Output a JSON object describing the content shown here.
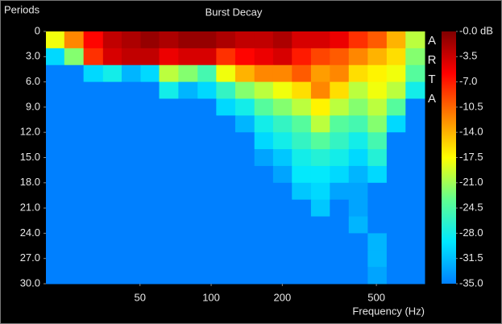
{
  "chart_data": {
    "type": "heatmap",
    "title": "Burst Decay",
    "y_label": "Periods",
    "x_label": "Frequency (Hz)",
    "watermark": "ARTA",
    "x_scale": "log",
    "xlim": [
      20,
      800
    ],
    "xticks": [
      50,
      100,
      200,
      500
    ],
    "ylim": [
      0,
      30
    ],
    "yticks": [
      0,
      {
        "value": 3,
        "label": "3.0"
      },
      {
        "value": 6,
        "label": "6.0"
      },
      {
        "value": 9,
        "label": "9.0"
      },
      {
        "value": 12,
        "label": "12.0"
      },
      {
        "value": 15,
        "label": "15.0"
      },
      {
        "value": 18,
        "label": "18.0"
      },
      {
        "value": 21,
        "label": "21.0"
      },
      {
        "value": 24,
        "label": "24.0"
      },
      {
        "value": 27,
        "label": "27.0"
      },
      {
        "value": 30,
        "label": "30.0"
      }
    ],
    "zlim": [
      -35,
      0
    ],
    "zticks": [
      {
        "value": 0,
        "label": "-0.0 dB"
      },
      -3.5,
      {
        "value": -7,
        "label": "-7.0"
      },
      -10.5,
      {
        "value": -14,
        "label": "-14.0"
      },
      -17.5,
      {
        "value": -21,
        "label": "-21.0"
      },
      -24.5,
      {
        "value": -28,
        "label": "-28.0"
      },
      -31.5,
      {
        "value": -35,
        "label": "-35.0"
      }
    ],
    "colorscale": [
      "#0080ff",
      "#00e8ff",
      "#60ff90",
      "#ffff00",
      "#ff8000",
      "#ff0000",
      "#800000"
    ],
    "x": [
      22,
      26,
      32,
      38,
      46,
      55,
      66,
      80,
      96,
      115,
      139,
      167,
      200,
      241,
      290,
      348,
      419,
      504,
      606,
      728
    ],
    "y": [
      1,
      3,
      5,
      7,
      9,
      11,
      13,
      15,
      17,
      19,
      21,
      23,
      25,
      27,
      29
    ],
    "values": [
      [
        -18,
        -12,
        -6,
        -3,
        -2,
        -1,
        -2,
        -1,
        -1,
        -2,
        -3,
        -3,
        -2,
        -4,
        -4,
        -5,
        -8,
        -10,
        -14,
        -20
      ],
      [
        -30,
        -22,
        -8,
        -4,
        -3,
        -3,
        -5,
        -4,
        -4,
        -8,
        -6,
        -5,
        -4,
        -7,
        -9,
        -10,
        -12,
        -14,
        -16,
        -22
      ],
      [
        -35,
        -35,
        -30,
        -28,
        -32,
        -30,
        -20,
        -22,
        -25,
        -18,
        -14,
        -12,
        -12,
        -10,
        -13,
        -12,
        -16,
        -17,
        -18,
        -24
      ],
      [
        -35,
        -35,
        -35,
        -35,
        -35,
        -35,
        -28,
        -32,
        -30,
        -26,
        -22,
        -20,
        -18,
        -16,
        -12,
        -16,
        -20,
        -18,
        -20,
        -28
      ],
      [
        -35,
        -35,
        -35,
        -35,
        -35,
        -35,
        -35,
        -35,
        -35,
        -30,
        -28,
        -24,
        -22,
        -20,
        -17,
        -20,
        -22,
        -20,
        -24,
        -35
      ],
      [
        -35,
        -35,
        -35,
        -35,
        -35,
        -35,
        -35,
        -35,
        -35,
        -35,
        -32,
        -28,
        -26,
        -24,
        -20,
        -24,
        -25,
        -22,
        -30,
        -35
      ],
      [
        -35,
        -35,
        -35,
        -35,
        -35,
        -35,
        -35,
        -35,
        -35,
        -35,
        -35,
        -30,
        -28,
        -26,
        -24,
        -26,
        -28,
        -25,
        -35,
        -35
      ],
      [
        -35,
        -35,
        -35,
        -35,
        -35,
        -35,
        -35,
        -35,
        -35,
        -35,
        -35,
        -33,
        -31,
        -28,
        -27,
        -28,
        -30,
        -27,
        -35,
        -35
      ],
      [
        -35,
        -35,
        -35,
        -35,
        -35,
        -35,
        -35,
        -35,
        -35,
        -35,
        -35,
        -35,
        -33,
        -29,
        -29,
        -30,
        -32,
        -30,
        -35,
        -35
      ],
      [
        -35,
        -35,
        -35,
        -35,
        -35,
        -35,
        -35,
        -35,
        -35,
        -35,
        -35,
        -35,
        -35,
        -31,
        -30,
        -33,
        -33,
        -35,
        -35,
        -35
      ],
      [
        -35,
        -35,
        -35,
        -35,
        -35,
        -35,
        -35,
        -35,
        -35,
        -35,
        -35,
        -35,
        -35,
        -35,
        -31,
        -35,
        -33,
        -35,
        -35,
        -35
      ],
      [
        -35,
        -35,
        -35,
        -35,
        -35,
        -35,
        -35,
        -35,
        -35,
        -35,
        -35,
        -35,
        -35,
        -35,
        -35,
        -35,
        -32,
        -35,
        -35,
        -35
      ],
      [
        -35,
        -35,
        -35,
        -35,
        -35,
        -35,
        -35,
        -35,
        -35,
        -35,
        -35,
        -35,
        -35,
        -35,
        -35,
        -35,
        -35,
        -32,
        -35,
        -35
      ],
      [
        -35,
        -35,
        -35,
        -35,
        -35,
        -35,
        -35,
        -35,
        -35,
        -35,
        -35,
        -35,
        -35,
        -35,
        -35,
        -35,
        -35,
        -32,
        -35,
        -35
      ],
      [
        -35,
        -35,
        -35,
        -35,
        -35,
        -35,
        -35,
        -35,
        -35,
        -35,
        -35,
        -35,
        -35,
        -35,
        -35,
        -35,
        -35,
        -33,
        -35,
        -35
      ]
    ]
  }
}
